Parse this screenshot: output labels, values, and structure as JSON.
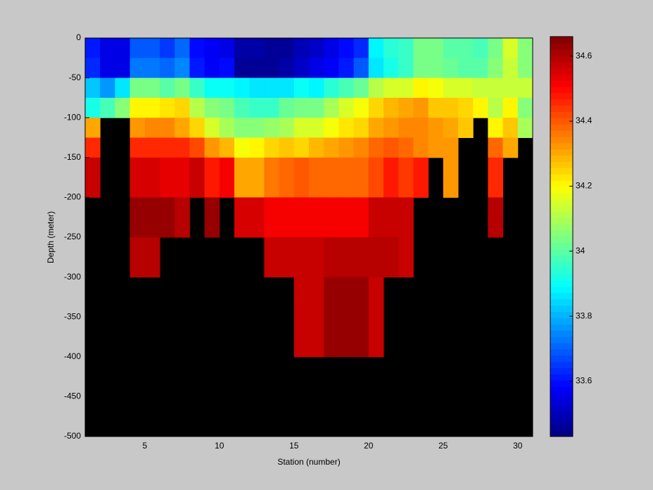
{
  "chart_data": {
    "type": "heatmap",
    "colormap": "jet",
    "xlabel": "Station (number)",
    "ylabel": "Depth (meter)",
    "xlim": [
      1,
      31
    ],
    "ylim": [
      -500,
      0
    ],
    "xticks": [
      5,
      10,
      15,
      20,
      25,
      30
    ],
    "yticks": [
      0,
      -50,
      -100,
      -150,
      -200,
      -250,
      -300,
      -350,
      -400,
      -450,
      -500
    ],
    "clim": [
      33.43,
      34.66
    ],
    "cticks": [
      33.6,
      33.8,
      34,
      34.2,
      34.4,
      34.6
    ],
    "x": [
      1,
      2,
      3,
      4,
      5,
      6,
      7,
      8,
      9,
      10,
      11,
      12,
      13,
      14,
      15,
      16,
      17,
      18,
      19,
      20,
      21,
      22,
      23,
      24,
      25,
      26,
      27,
      28,
      29,
      30
    ],
    "y": [
      0,
      -25,
      -50,
      -75,
      -100,
      -125,
      -150,
      -175,
      -200,
      -225,
      -250,
      -275,
      -300,
      -325,
      -350,
      -375
    ],
    "z": [
      [
        33.62,
        33.55,
        33.55,
        33.68,
        33.68,
        33.66,
        33.7,
        33.6,
        33.57,
        33.56,
        33.48,
        33.48,
        33.45,
        33.46,
        33.5,
        33.52,
        33.55,
        33.6,
        33.64,
        33.88,
        33.93,
        33.96,
        34.03,
        34.03,
        34.0,
        34.0,
        33.98,
        34.04,
        34.15,
        34.05
      ],
      [
        33.64,
        33.56,
        33.56,
        33.73,
        33.73,
        33.7,
        33.74,
        33.62,
        33.58,
        33.6,
        33.46,
        33.46,
        33.46,
        33.47,
        33.52,
        33.55,
        33.58,
        33.62,
        33.68,
        33.86,
        33.92,
        33.95,
        34.03,
        34.03,
        34.02,
        34.0,
        33.99,
        34.05,
        34.13,
        34.05
      ],
      [
        33.82,
        33.76,
        33.86,
        34.03,
        34.03,
        34.0,
        34.03,
        33.95,
        33.9,
        33.9,
        33.88,
        33.86,
        33.86,
        33.86,
        33.9,
        33.88,
        33.94,
        33.98,
        34.02,
        34.12,
        34.16,
        34.16,
        34.2,
        34.18,
        34.15,
        34.15,
        34.14,
        34.14,
        34.14,
        34.14
      ],
      [
        33.92,
        33.98,
        34.05,
        34.2,
        34.2,
        34.22,
        34.24,
        34.12,
        34.05,
        34.03,
        33.97,
        33.96,
        33.96,
        34.02,
        34.04,
        34.03,
        34.1,
        34.15,
        34.18,
        34.25,
        34.28,
        34.3,
        34.32,
        34.27,
        34.27,
        34.25,
        34.2,
        34.12,
        34.2,
        34.06
      ],
      [
        34.3,
        null,
        null,
        34.33,
        34.35,
        34.35,
        34.3,
        34.25,
        34.15,
        34.1,
        34.05,
        34.05,
        34.08,
        34.1,
        34.15,
        34.15,
        34.18,
        34.22,
        34.25,
        34.3,
        34.32,
        34.35,
        34.35,
        34.32,
        34.3,
        34.27,
        null,
        34.2,
        34.27,
        34.1
      ],
      [
        34.45,
        null,
        null,
        34.45,
        34.45,
        34.45,
        34.45,
        34.42,
        34.32,
        34.28,
        34.18,
        34.2,
        34.25,
        34.27,
        34.25,
        34.28,
        34.3,
        34.32,
        34.35,
        34.38,
        34.4,
        34.38,
        34.35,
        34.33,
        34.32,
        null,
        null,
        34.38,
        34.3,
        null
      ],
      [
        34.58,
        null,
        null,
        34.55,
        34.55,
        34.53,
        34.53,
        34.58,
        34.48,
        34.52,
        34.3,
        34.3,
        34.36,
        34.38,
        34.4,
        34.38,
        34.38,
        34.38,
        34.38,
        34.42,
        34.47,
        34.43,
        34.47,
        null,
        34.33,
        null,
        null,
        34.45,
        null,
        null
      ],
      [
        34.58,
        null,
        null,
        34.55,
        34.55,
        34.53,
        34.53,
        34.58,
        34.48,
        34.52,
        34.3,
        34.3,
        34.36,
        34.38,
        34.4,
        34.38,
        34.38,
        34.38,
        34.38,
        34.42,
        34.47,
        34.43,
        34.47,
        null,
        34.33,
        null,
        null,
        34.45,
        null,
        null
      ],
      [
        null,
        null,
        null,
        34.64,
        34.64,
        34.64,
        34.6,
        null,
        34.64,
        null,
        34.55,
        34.55,
        34.52,
        34.52,
        34.52,
        34.52,
        34.52,
        34.52,
        34.52,
        34.57,
        34.58,
        34.58,
        null,
        null,
        null,
        null,
        null,
        34.6,
        null,
        null
      ],
      [
        null,
        null,
        null,
        34.64,
        34.64,
        34.64,
        34.6,
        null,
        34.64,
        null,
        34.55,
        34.55,
        34.52,
        34.52,
        34.52,
        34.52,
        34.52,
        34.52,
        34.52,
        34.57,
        34.58,
        34.58,
        null,
        null,
        null,
        null,
        null,
        34.6,
        null,
        null
      ],
      [
        null,
        null,
        null,
        34.6,
        34.6,
        null,
        null,
        null,
        null,
        null,
        null,
        null,
        34.58,
        34.58,
        34.58,
        34.58,
        34.6,
        34.6,
        34.6,
        34.6,
        34.6,
        34.58,
        null,
        null,
        null,
        null,
        null,
        null,
        null,
        null
      ],
      [
        null,
        null,
        null,
        34.6,
        34.6,
        null,
        null,
        null,
        null,
        null,
        null,
        null,
        34.58,
        34.58,
        34.58,
        34.58,
        34.6,
        34.6,
        34.6,
        34.6,
        34.6,
        34.58,
        null,
        null,
        null,
        null,
        null,
        null,
        null,
        null
      ],
      [
        null,
        null,
        null,
        null,
        null,
        null,
        null,
        null,
        null,
        null,
        null,
        null,
        null,
        null,
        34.58,
        34.58,
        34.64,
        34.64,
        34.64,
        34.57,
        null,
        null,
        null,
        null,
        null,
        null,
        null,
        null,
        null,
        null
      ],
      [
        null,
        null,
        null,
        null,
        null,
        null,
        null,
        null,
        null,
        null,
        null,
        null,
        null,
        null,
        34.58,
        34.58,
        34.64,
        34.64,
        34.64,
        34.57,
        null,
        null,
        null,
        null,
        null,
        null,
        null,
        null,
        null,
        null
      ],
      [
        null,
        null,
        null,
        null,
        null,
        null,
        null,
        null,
        null,
        null,
        null,
        null,
        null,
        null,
        34.58,
        34.58,
        34.64,
        34.64,
        34.64,
        34.57,
        null,
        null,
        null,
        null,
        null,
        null,
        null,
        null,
        null,
        null
      ],
      [
        null,
        null,
        null,
        null,
        null,
        null,
        null,
        null,
        null,
        null,
        null,
        null,
        null,
        null,
        34.58,
        34.58,
        34.64,
        34.64,
        34.64,
        34.57,
        null,
        null,
        null,
        null,
        null,
        null,
        null,
        null,
        null,
        null
      ]
    ]
  }
}
